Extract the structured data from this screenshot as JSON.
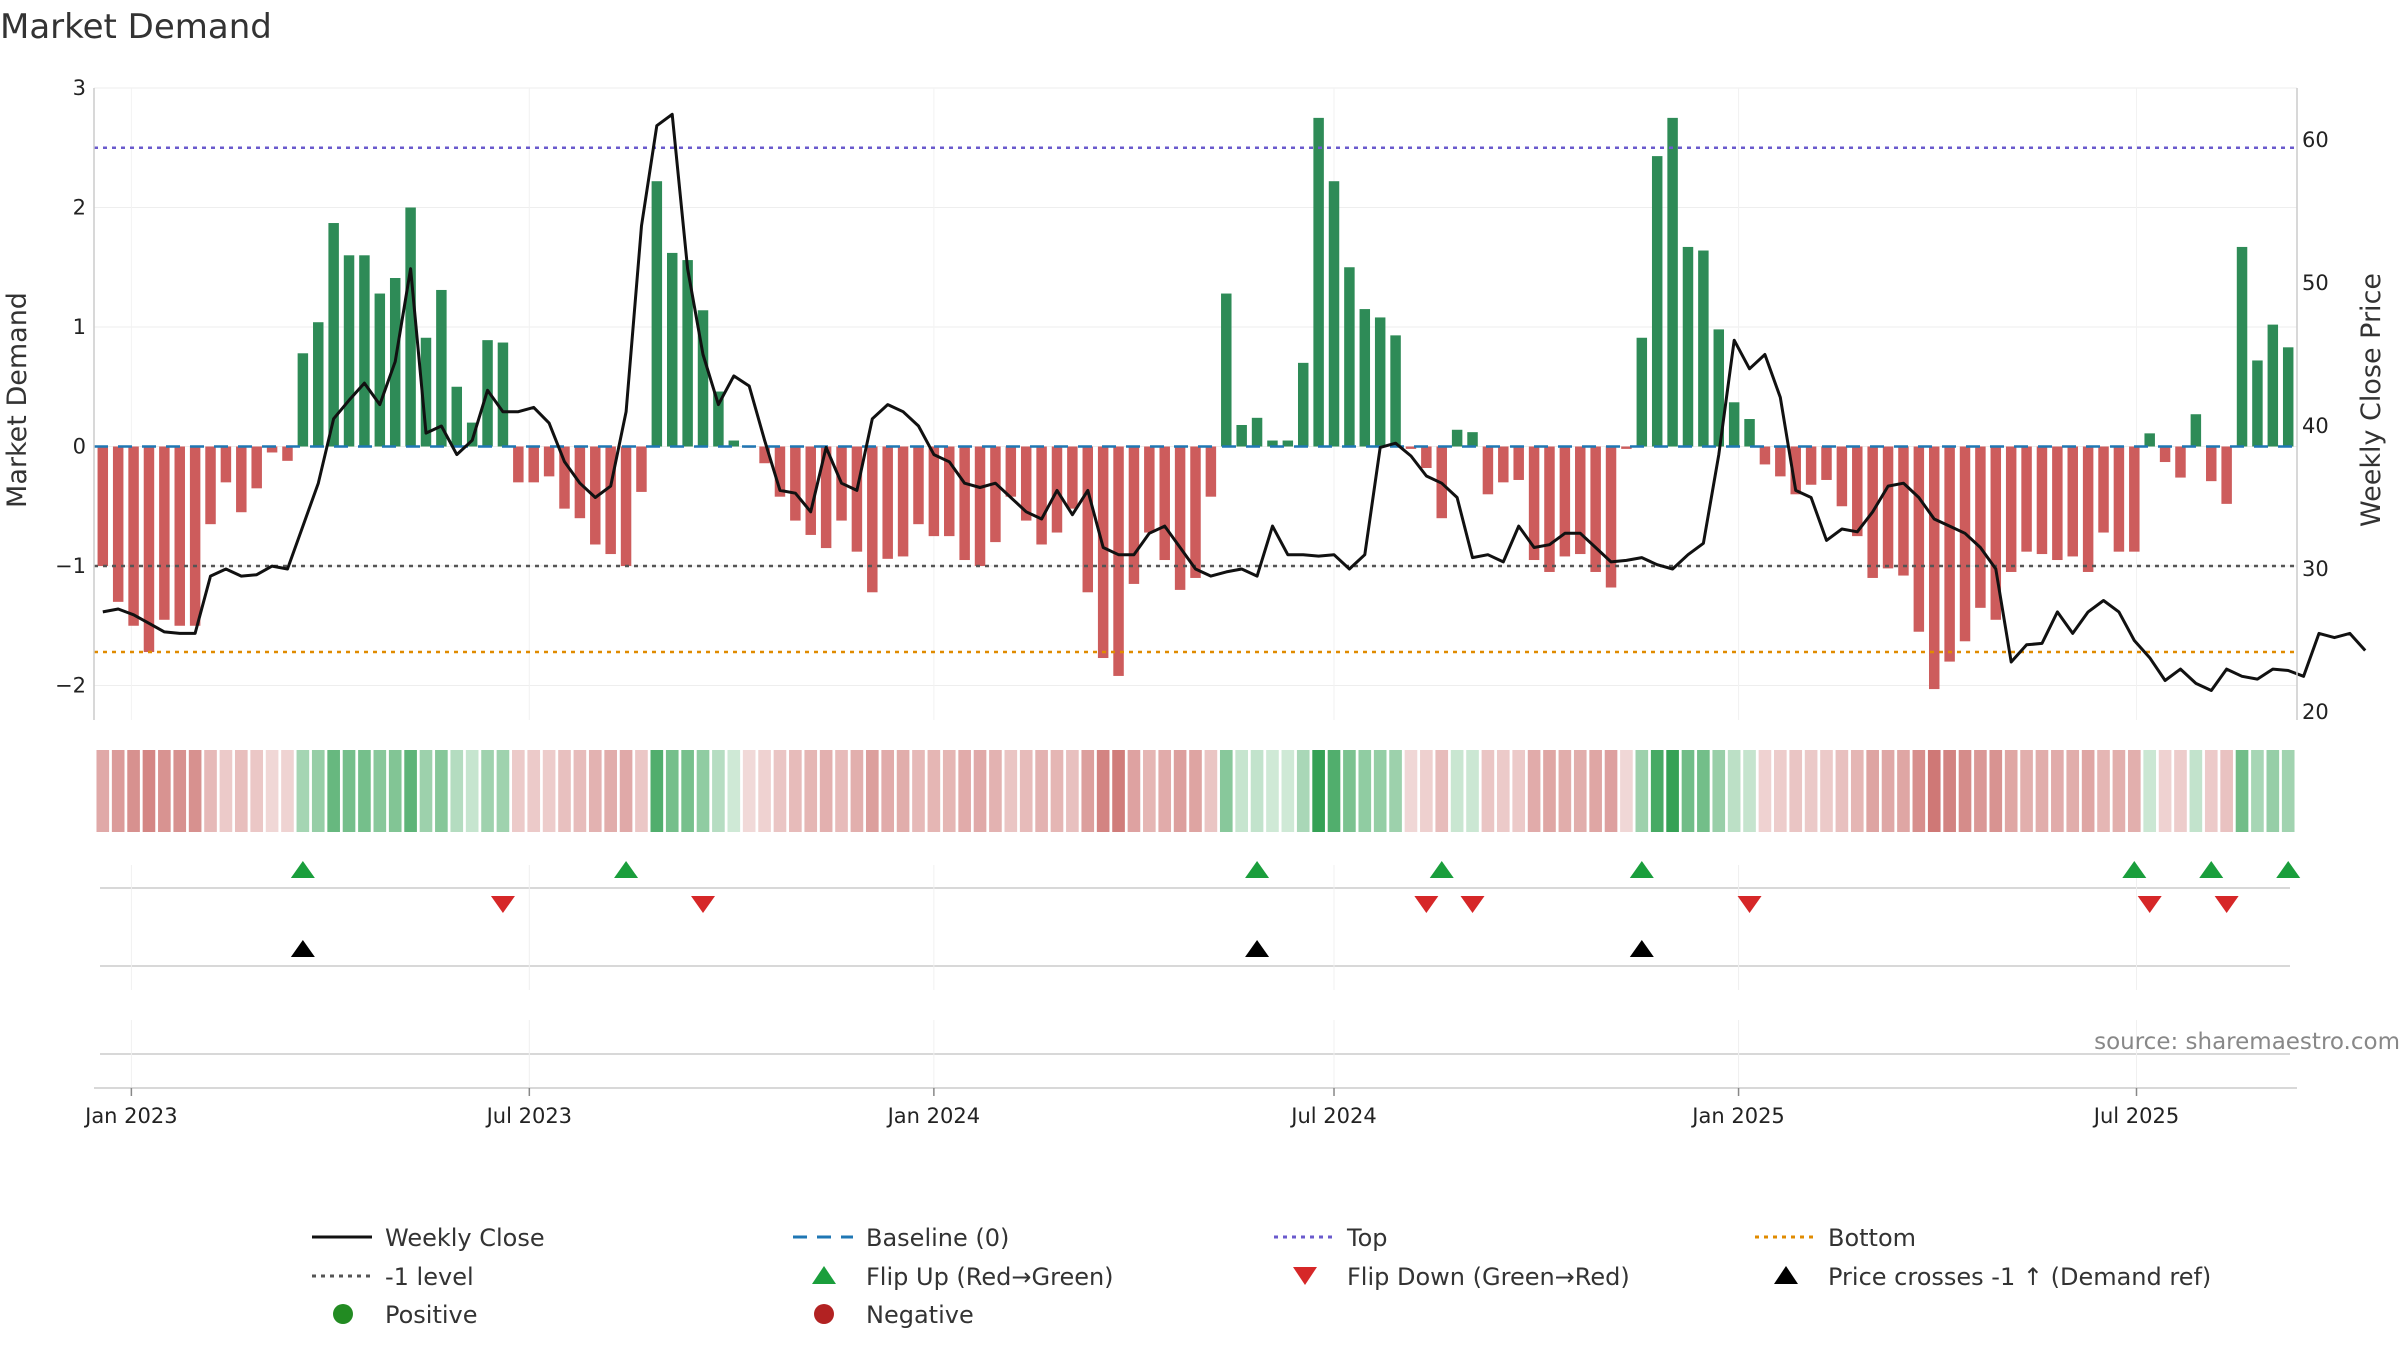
{
  "chart_data": {
    "type": "bar",
    "title": "Market Demand",
    "ylabel": "Market Demand",
    "y2label": "Weekly Close Price",
    "ylim": [
      -2.3,
      3.0
    ],
    "y2lim": [
      20,
      65
    ],
    "yticks": [
      "3",
      "2",
      "1",
      "0",
      "−1",
      "−2"
    ],
    "y2ticks": [
      "60",
      "50",
      "40",
      "30",
      "20"
    ],
    "xticks": [
      "Jan 2023",
      "Jul 2023",
      "Jan 2024",
      "Jul 2024",
      "Jan 2025",
      "Jul 2025"
    ],
    "start_date": "2022-12-19",
    "reference_lines": {
      "top": 2.5,
      "minus_one": -1,
      "bottom": -1.72,
      "baseline": 0
    },
    "demand": [
      -1.0,
      -1.3,
      -1.5,
      -1.72,
      -1.45,
      -1.5,
      -1.5,
      -0.65,
      -0.3,
      -0.55,
      -0.35,
      -0.05,
      -0.12,
      0.78,
      1.04,
      1.87,
      1.6,
      1.6,
      1.28,
      1.41,
      2.0,
      0.91,
      1.31,
      0.5,
      0.2,
      0.89,
      0.87,
      -0.3,
      -0.3,
      -0.25,
      -0.52,
      -0.6,
      -0.82,
      -0.9,
      -1.0,
      -0.38,
      2.22,
      1.62,
      1.56,
      1.14,
      0.46,
      0.05,
      -0.01,
      -0.14,
      -0.42,
      -0.62,
      -0.74,
      -0.85,
      -0.62,
      -0.88,
      -1.22,
      -0.94,
      -0.92,
      -0.65,
      -0.75,
      -0.75,
      -0.95,
      -1.0,
      -0.8,
      -0.42,
      -0.62,
      -0.82,
      -0.72,
      -0.52,
      -1.22,
      -1.77,
      -1.92,
      -1.15,
      -0.72,
      -0.95,
      -1.2,
      -1.1,
      -0.42,
      1.28,
      0.18,
      0.24,
      0.05,
      0.05,
      0.7,
      2.75,
      2.22,
      1.5,
      1.15,
      1.08,
      0.93,
      -0.02,
      -0.18,
      -0.6,
      0.14,
      0.12,
      -0.4,
      -0.3,
      -0.28,
      -0.95,
      -1.05,
      -0.92,
      -0.9,
      -1.05,
      -1.18,
      -0.02,
      0.91,
      2.43,
      2.75,
      1.67,
      1.64,
      0.98,
      0.37,
      0.23,
      -0.15,
      -0.25,
      -0.4,
      -0.32,
      -0.28,
      -0.5,
      -0.75,
      -1.1,
      -1.02,
      -1.08,
      -1.55,
      -2.03,
      -1.8,
      -1.63,
      -1.35,
      -1.45,
      -1.05,
      -0.88,
      -0.9,
      -0.95,
      -0.92,
      -1.05,
      -0.72,
      -0.88,
      -0.88,
      0.11,
      -0.13,
      -0.26,
      0.27,
      -0.29,
      -0.48,
      1.67,
      0.72,
      1.02,
      0.83
    ],
    "close": [
      27.0,
      27.2,
      26.8,
      26.2,
      25.6,
      25.5,
      25.5,
      29.5,
      30.0,
      29.5,
      29.6,
      30.2,
      30.0,
      33.0,
      36.0,
      40.5,
      41.8,
      43.0,
      41.5,
      44.5,
      51.0,
      39.5,
      40.0,
      38.0,
      39.0,
      42.5,
      41.0,
      41.0,
      41.3,
      40.2,
      37.5,
      36.0,
      35.0,
      35.8,
      41.0,
      54.0,
      61.0,
      61.8,
      51.0,
      45.0,
      41.5,
      43.5,
      42.8,
      39.0,
      35.5,
      35.3,
      34.0,
      38.5,
      36.0,
      35.5,
      40.5,
      41.5,
      41.0,
      40.0,
      38.0,
      37.5,
      36.0,
      35.7,
      36.0,
      35.0,
      34.0,
      33.5,
      35.5,
      33.8,
      35.5,
      31.5,
      31.0,
      31.0,
      32.5,
      33.0,
      31.5,
      30.0,
      29.5,
      29.8,
      30.0,
      29.5,
      33.0,
      31.0,
      31.0,
      30.9,
      31.0,
      30.0,
      31.0,
      38.5,
      38.8,
      37.9,
      36.5,
      36.0,
      35.0,
      30.8,
      31.0,
      30.5,
      33.0,
      31.5,
      31.7,
      32.5,
      32.5,
      31.5,
      30.5,
      30.6,
      30.8,
      30.3,
      30.0,
      31.0,
      31.8,
      38.0,
      46.0,
      44.0,
      45.0,
      42.0,
      35.5,
      35.0,
      32.0,
      32.8,
      32.6,
      34.0,
      35.8,
      36.0,
      35.0,
      33.5,
      33.0,
      32.5,
      31.5,
      30.0,
      23.5,
      24.7,
      24.8,
      27.0,
      25.5,
      27.0,
      27.8,
      27.0,
      25.0,
      23.8,
      22.2,
      23.0,
      22.0,
      21.5,
      23.0,
      22.5,
      22.3,
      23.0,
      22.9,
      22.5,
      25.5,
      25.2,
      25.5,
      24.3
    ]
  },
  "signal_rows": {
    "flip_up_dates": [
      "2023-03-20",
      "2023-08-14",
      "2024-05-27",
      "2024-08-19",
      "2024-11-18",
      "2025-06-30",
      "2025-08-04",
      "2025-09-08"
    ],
    "flip_down_dates": [
      "2023-06-19",
      "2023-09-18",
      "2024-08-12",
      "2024-09-02",
      "2025-01-06",
      "2025-07-07",
      "2025-08-11"
    ],
    "cross_dates": [
      "2023-03-20",
      "2024-05-27",
      "2024-11-18"
    ]
  },
  "source_text": "source: sharemaestro.com",
  "legend": {
    "weekly_close": "Weekly Close",
    "baseline": "Baseline (0)",
    "top": "Top",
    "bottom": "Bottom",
    "minus_one": "-1 level",
    "flip_up": "Flip Up (Red→Green)",
    "flip_down": "Flip Down (Green→Red)",
    "price_cross": "Price crosses -1 ↑ (Demand ref)",
    "positive": "Positive",
    "negative": "Negative"
  },
  "colors": {
    "positive_bar": "#2e8b57",
    "negative_bar": "#cd5c5c",
    "close_line": "#111111",
    "baseline": "#1f77b4",
    "top": "#6a5acd",
    "bottom": "#e08b00",
    "minus_one": "#555555",
    "flip_up": "#1a9e3c",
    "flip_down": "#d62728",
    "cross": "#000000",
    "positive_dot": "#228b22",
    "negative_dot": "#b22222"
  }
}
